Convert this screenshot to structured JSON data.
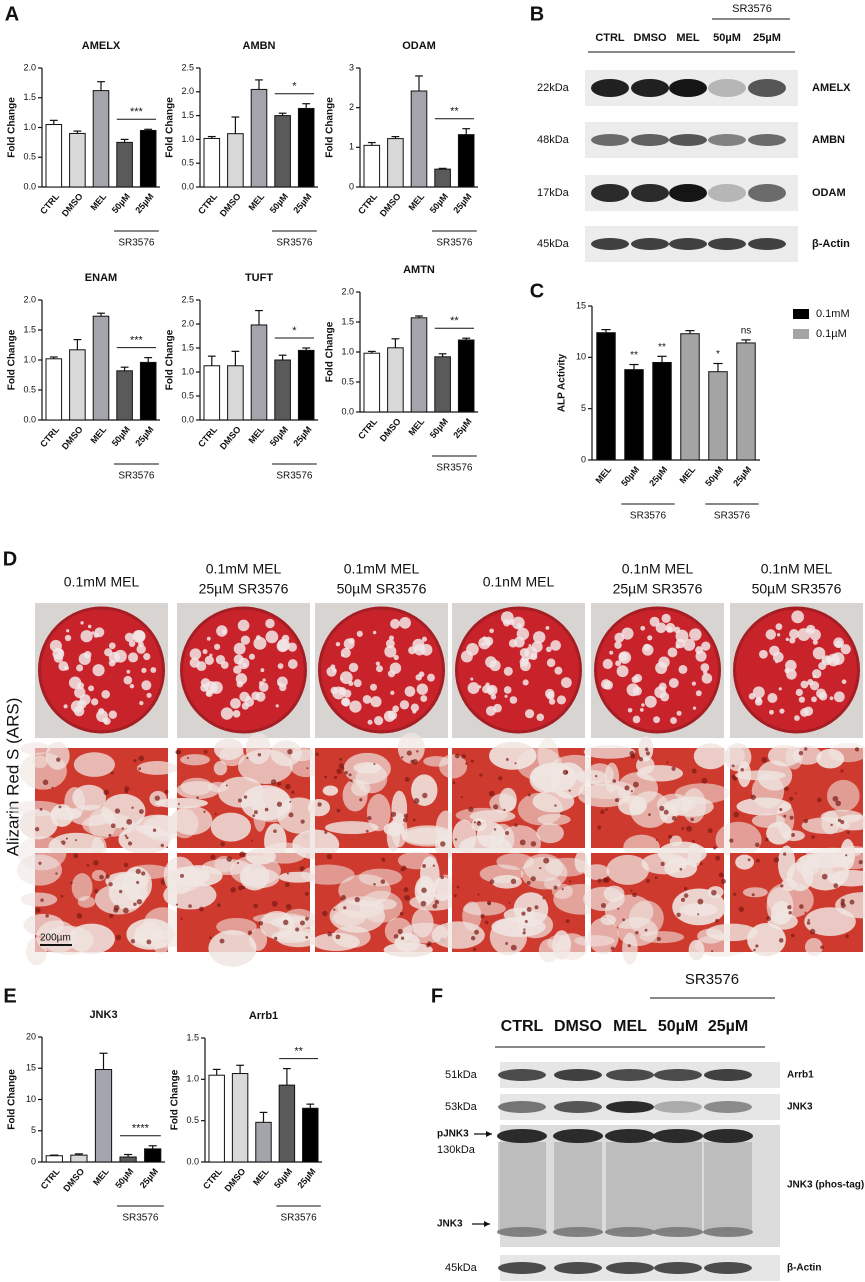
{
  "panel_labels": [
    "A",
    "B",
    "C",
    "D",
    "E",
    "F"
  ],
  "chart_data": [
    {
      "type": "bar",
      "title": "AMELX",
      "ylabel": "Fold Change",
      "categories": [
        "CTRL",
        "DMSO",
        "MEL",
        "50µM",
        "25µM"
      ],
      "values": [
        1.05,
        0.9,
        1.62,
        0.75,
        0.95
      ],
      "errors": [
        0.07,
        0.04,
        0.15,
        0.05,
        0.02
      ],
      "colors": [
        "#ffffff",
        "#d9d9d9",
        "#a4a4ac",
        "#5a5a5a",
        "#000000"
      ],
      "ylim": [
        0,
        2
      ],
      "yticks": [
        {
          "value": 0,
          "label": "0.0"
        },
        0.5,
        {
          "value": 1,
          "label": "1.0"
        },
        1.5,
        {
          "value": 2,
          "label": "2.0"
        }
      ],
      "group_label": "SR3576",
      "significance": "***"
    },
    {
      "type": "bar",
      "title": "AMBN",
      "ylabel": "Fold Change",
      "categories": [
        "CTRL",
        "DMSO",
        "MEL",
        "50µM",
        "25µM"
      ],
      "values": [
        1.02,
        1.12,
        2.05,
        1.5,
        1.65
      ],
      "errors": [
        0.04,
        0.35,
        0.2,
        0.05,
        0.1
      ],
      "colors": [
        "#ffffff",
        "#d9d9d9",
        "#a4a4ac",
        "#5a5a5a",
        "#000000"
      ],
      "ylim": [
        0,
        2.5
      ],
      "yticks": [
        {
          "value": 0,
          "label": "0.0"
        },
        0.5,
        {
          "value": 1,
          "label": "1.0"
        },
        1.5,
        {
          "value": 2,
          "label": "2.0"
        },
        2.5
      ],
      "group_label": "SR3576",
      "significance": "*"
    },
    {
      "type": "bar",
      "title": "ODAM",
      "ylabel": "Fold Change",
      "categories": [
        "CTRL",
        "DMSO",
        "MEL",
        "50µM",
        "25µM"
      ],
      "values": [
        1.05,
        1.22,
        2.42,
        0.45,
        1.32
      ],
      "errors": [
        0.07,
        0.05,
        0.38,
        0.02,
        0.15
      ],
      "colors": [
        "#ffffff",
        "#d9d9d9",
        "#a4a4ac",
        "#5a5a5a",
        "#000000"
      ],
      "ylim": [
        0,
        3
      ],
      "yticks": [
        0,
        1,
        2,
        3
      ],
      "group_label": "SR3576",
      "significance": "**"
    },
    {
      "type": "bar",
      "title": "ENAM",
      "ylabel": "Fold Change",
      "categories": [
        "CTRL",
        "DMSO",
        "MEL",
        "50µM",
        "25µM"
      ],
      "values": [
        1.02,
        1.17,
        1.73,
        0.82,
        0.96
      ],
      "errors": [
        0.03,
        0.17,
        0.05,
        0.06,
        0.08
      ],
      "colors": [
        "#ffffff",
        "#d9d9d9",
        "#a4a4ac",
        "#5a5a5a",
        "#000000"
      ],
      "ylim": [
        0,
        2
      ],
      "yticks": [
        {
          "value": 0,
          "label": "0.0"
        },
        0.5,
        {
          "value": 1,
          "label": "1.0"
        },
        1.5,
        {
          "value": 2,
          "label": "2.0"
        }
      ],
      "group_label": "SR3576",
      "significance": "***"
    },
    {
      "type": "bar",
      "title": "TUFT",
      "ylabel": "Fold Change",
      "categories": [
        "CTRL",
        "DMSO",
        "MEL",
        "50µM",
        "25µM"
      ],
      "values": [
        1.13,
        1.13,
        1.98,
        1.25,
        1.45
      ],
      "errors": [
        0.2,
        0.3,
        0.3,
        0.1,
        0.05
      ],
      "colors": [
        "#ffffff",
        "#d9d9d9",
        "#a4a4ac",
        "#5a5a5a",
        "#000000"
      ],
      "ylim": [
        0,
        2.5
      ],
      "yticks": [
        {
          "value": 0,
          "label": "0.0"
        },
        0.5,
        {
          "value": 1,
          "label": "1.0"
        },
        1.5,
        {
          "value": 2,
          "label": "2.0"
        },
        2.5
      ],
      "group_label": "SR3576",
      "significance": "*"
    },
    {
      "type": "bar",
      "title": "AMTN",
      "ylabel": "Fold Change",
      "categories": [
        "CTRL",
        "DMSO",
        "MEL",
        "50µM",
        "25µM"
      ],
      "values": [
        0.98,
        1.07,
        1.57,
        0.92,
        1.2
      ],
      "errors": [
        0.03,
        0.15,
        0.03,
        0.05,
        0.03
      ],
      "colors": [
        "#ffffff",
        "#d9d9d9",
        "#a4a4ac",
        "#5a5a5a",
        "#000000"
      ],
      "ylim": [
        0,
        2
      ],
      "yticks": [
        {
          "value": 0,
          "label": "0.0"
        },
        0.5,
        {
          "value": 1,
          "label": "1.0"
        },
        1.5,
        {
          "value": 2,
          "label": "2.0"
        }
      ],
      "group_label": "SR3576",
      "significance": "**"
    },
    {
      "type": "bar",
      "ylabel": "ALP Activity",
      "categories": [
        "MEL",
        "50µM",
        "25µM",
        "MEL",
        "50µM",
        "25µM"
      ],
      "series": [
        {
          "name": "0.1mM",
          "color": "#000000",
          "values": [
            12.4,
            8.8,
            9.5,
            null,
            null,
            null
          ],
          "errors": [
            0.3,
            0.5,
            0.6,
            null,
            null,
            null
          ],
          "significance": [
            null,
            "**",
            "**",
            null,
            null,
            null
          ]
        },
        {
          "name": "0.1µM",
          "color": "#a4a4a4",
          "values": [
            null,
            null,
            null,
            12.3,
            8.6,
            11.4
          ],
          "errors": [
            null,
            null,
            null,
            0.3,
            0.8,
            0.3
          ],
          "significance": [
            null,
            null,
            null,
            null,
            "*",
            "ns"
          ]
        }
      ],
      "ylim": [
        0,
        15
      ],
      "yticks": [
        0,
        5,
        10,
        15
      ],
      "group_labels": [
        "SR3576",
        "SR3576"
      ],
      "legend": "upper right"
    },
    {
      "type": "bar",
      "title": "JNK3",
      "ylabel": "Fold Change",
      "categories": [
        "CTRL",
        "DMSO",
        "MEL",
        "50µM",
        "25µM"
      ],
      "values": [
        1.0,
        1.1,
        14.8,
        0.8,
        2.1
      ],
      "errors": [
        0.1,
        0.2,
        2.6,
        0.4,
        0.5
      ],
      "colors": [
        "#ffffff",
        "#d9d9d9",
        "#a4a4ac",
        "#5a5a5a",
        "#000000"
      ],
      "ylim": [
        0,
        20
      ],
      "yticks": [
        0,
        5,
        10,
        15,
        20
      ],
      "group_label": "SR3576",
      "significance": "****"
    },
    {
      "type": "bar",
      "title": "Arrb1",
      "ylabel": "Fold Change",
      "categories": [
        "CTRL",
        "DMSO",
        "MEL",
        "50µM",
        "25µM"
      ],
      "values": [
        1.05,
        1.07,
        0.48,
        0.93,
        0.65
      ],
      "errors": [
        0.07,
        0.1,
        0.12,
        0.2,
        0.05
      ],
      "colors": [
        "#ffffff",
        "#d9d9d9",
        "#a4a4ac",
        "#5a5a5a",
        "#000000"
      ],
      "ylim": [
        0,
        1.5
      ],
      "yticks": [
        {
          "value": 0,
          "label": "0.0"
        },
        0.5,
        {
          "value": 1,
          "label": "1.0"
        },
        1.5
      ],
      "group_label": "SR3576",
      "significance": "**"
    }
  ],
  "blot_b": {
    "group_label": "SR3576",
    "lanes": [
      "CTRL",
      "DMSO",
      "MEL",
      "50µM",
      "25µM"
    ],
    "rows": [
      {
        "size": "22kDa",
        "protein": "AMELX"
      },
      {
        "size": "48kDa",
        "protein": "AMBN"
      },
      {
        "size": "17kDa",
        "protein": "ODAM"
      },
      {
        "size": "45kDa",
        "protein": "β-Actin"
      }
    ]
  },
  "staining_d": {
    "columns": [
      [
        "0.1mM MEL"
      ],
      [
        "0.1mM MEL",
        "25µM SR3576"
      ],
      [
        "0.1mM MEL",
        "50µM SR3576"
      ],
      [
        "0.1nM MEL"
      ],
      [
        "0.1nM MEL",
        "25µM SR3576"
      ],
      [
        "0.1nM MEL",
        "50µM SR3576"
      ]
    ],
    "row_label": "Alizarin Red S (ARS)",
    "scale_bar": "200µm"
  },
  "blot_f": {
    "group_label": "SR3576",
    "lanes": [
      "CTRL",
      "DMSO",
      "MEL",
      "50µM",
      "25µM"
    ],
    "rows": [
      {
        "size": "51kDa",
        "protein": "Arrb1"
      },
      {
        "size": "53kDa",
        "protein": "JNK3"
      },
      {
        "size": "130kDa",
        "protein": "JNK3 (phos-tag)",
        "markers": [
          "pJNK3",
          "JNK3"
        ]
      },
      {
        "size": "45kDa",
        "protein": "β-Actin"
      }
    ]
  }
}
